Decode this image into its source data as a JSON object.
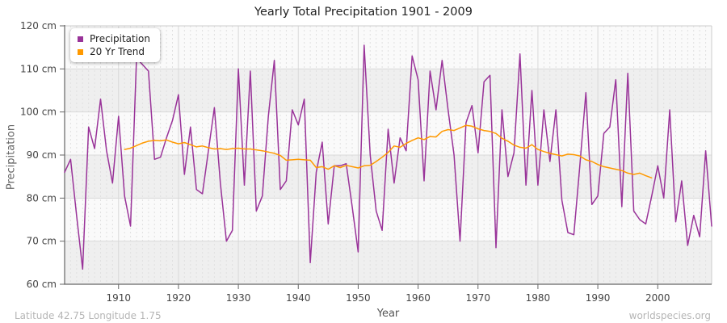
{
  "title": "Yearly Total Precipitation 1901 - 2009",
  "ylabel": "Precipitation",
  "xlabel": "Year",
  "footer": {
    "left": "Latitude 42.75 Longitude 1.75",
    "right": "worldspecies.org"
  },
  "legend": {
    "items": [
      {
        "label": "Precipitation",
        "color": "#993399"
      },
      {
        "label": "20 Yr Trend",
        "color": "#FF9900"
      }
    ]
  },
  "colors": {
    "precipitation": "#993399",
    "trend": "#FF9900",
    "band_gray": "#efefef",
    "plot_bg": "#fafafa",
    "gridline": "#d9d9d9",
    "minor_gridline": "#e0e0e0",
    "axis": "#666666",
    "border": "#cccccc",
    "tick_text": "#444444",
    "footer_text": "#b5b5b5"
  },
  "chart_data": {
    "type": "line",
    "title": "Yearly Total Precipitation 1901 - 2009",
    "xlabel": "Year",
    "ylabel": "Precipitation",
    "xlim": [
      1901,
      2009
    ],
    "ylim": [
      60,
      120
    ],
    "grid": true,
    "legend_position": "top-left",
    "y_ticks": [
      {
        "value": 120,
        "label": "120 cm"
      },
      {
        "value": 110,
        "label": "110 cm"
      },
      {
        "value": 100,
        "label": "100 cm"
      },
      {
        "value": 90,
        "label": "90 cm"
      },
      {
        "value": 80,
        "label": "80 cm"
      },
      {
        "value": 70,
        "label": "70 cm"
      },
      {
        "value": 60,
        "label": "60 cm"
      }
    ],
    "x_ticks": [
      {
        "value": 1910,
        "label": "1910"
      },
      {
        "value": 1920,
        "label": "1920"
      },
      {
        "value": 1930,
        "label": "1930"
      },
      {
        "value": 1940,
        "label": "1940"
      },
      {
        "value": 1950,
        "label": "1950"
      },
      {
        "value": 1960,
        "label": "1960"
      },
      {
        "value": 1970,
        "label": "1970"
      },
      {
        "value": 1980,
        "label": "1980"
      },
      {
        "value": 1990,
        "label": "1990"
      },
      {
        "value": 2000,
        "label": "2000"
      }
    ],
    "series": [
      {
        "name": "Precipitation",
        "color": "#993399",
        "x_start": 1901,
        "values": [
          86,
          89,
          76,
          63.5,
          96.5,
          91.5,
          103,
          91,
          83.5,
          99,
          80.5,
          73.5,
          112.5,
          111,
          109.5,
          89,
          89.5,
          94,
          98,
          104,
          85.5,
          96.5,
          82,
          81,
          91,
          101,
          83.5,
          70,
          72.5,
          110,
          83,
          109.5,
          77,
          80.5,
          99,
          112,
          82,
          84,
          100.5,
          97,
          103,
          65,
          86,
          93,
          74,
          87.5,
          87.5,
          88,
          78,
          67.5,
          115.5,
          90,
          77,
          72.5,
          96,
          83.5,
          94,
          91,
          113,
          107.5,
          84,
          109.5,
          100.5,
          112,
          100.5,
          90,
          70,
          97.5,
          101.5,
          90.5,
          107,
          108.5,
          68.5,
          100.5,
          85,
          90.5,
          113.5,
          83,
          105,
          83,
          100.5,
          88.5,
          100.5,
          79.5,
          72,
          71.5,
          87.5,
          104.5,
          78.5,
          80.5,
          95,
          96.5,
          107.5,
          78,
          109,
          77,
          75,
          74,
          80.5,
          87.5,
          80,
          100.5,
          74.5,
          84,
          69,
          76,
          71,
          91,
          73.5
        ]
      },
      {
        "name": "20 Yr Trend",
        "color": "#FF9900",
        "x_start": 1911,
        "values": [
          91.3,
          91.6,
          92.2,
          92.8,
          93.2,
          93.4,
          93.3,
          93.5,
          93,
          92.6,
          92.9,
          92.4,
          91.9,
          92.1,
          91.7,
          91.4,
          91.5,
          91.3,
          91.5,
          91.6,
          91.4,
          91.4,
          91.2,
          91,
          90.7,
          90.4,
          89.9,
          88.8,
          88.9,
          89,
          88.9,
          88.8,
          87.1,
          87.3,
          86.7,
          87.5,
          87.1,
          87.6,
          87.3,
          87,
          87.5,
          87.6,
          88.5,
          89.5,
          90.6,
          92.1,
          91.8,
          92.7,
          93.4,
          94,
          93.6,
          94.3,
          94.2,
          95.5,
          95.9,
          95.7,
          96.3,
          96.9,
          96.7,
          96.1,
          95.7,
          95.5,
          95,
          93.9,
          93.2,
          92.3,
          91.8,
          91.6,
          92.4,
          91.3,
          90.8,
          90.4,
          90.1,
          89.8,
          90.2,
          90.1,
          89.8,
          88.9,
          88.5,
          87.8,
          87.3,
          87,
          86.7,
          86.4,
          85.8,
          85.5,
          85.8,
          85.2,
          84.7
        ]
      }
    ]
  }
}
